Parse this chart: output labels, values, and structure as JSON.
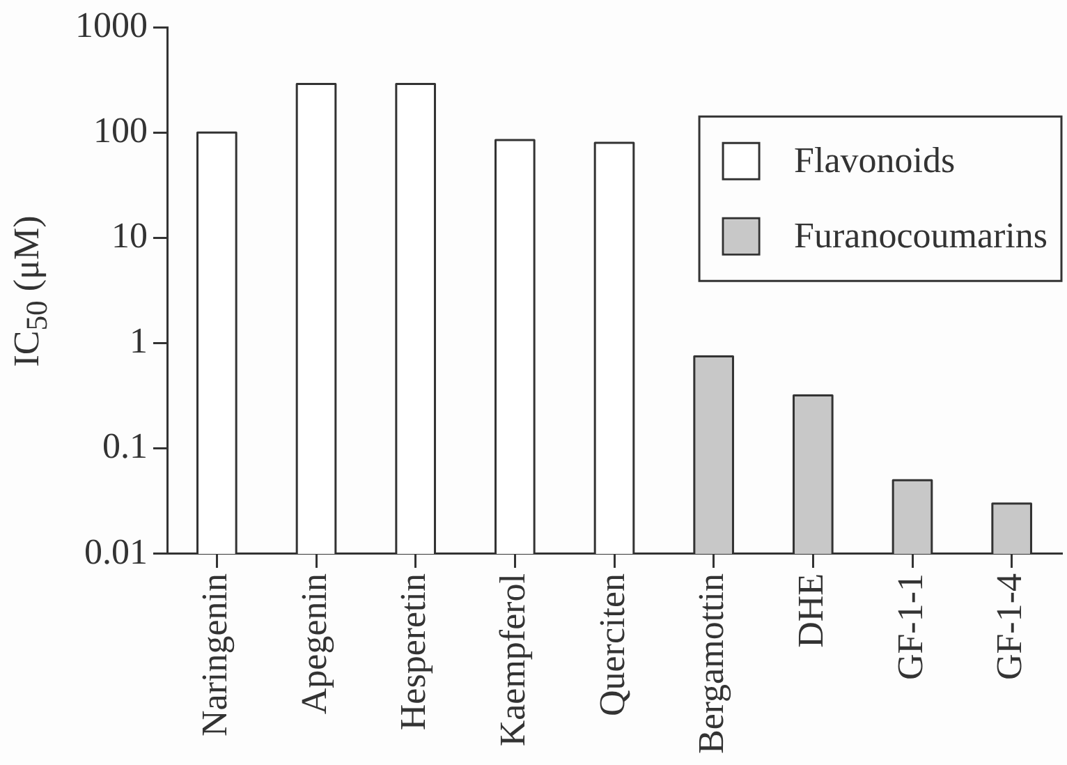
{
  "chart_data": {
    "type": "bar",
    "ylabel": "IC$_{50}$ (μM)",
    "categories": [
      "Naringenin",
      "Apegenin",
      "Hesperetin",
      "Kaempferol",
      "Querciten",
      "Bergamottin",
      "DHE",
      "GF-1-1",
      "GF-1-4"
    ],
    "series": [
      {
        "name": "Flavonoids",
        "color": "#ffffff",
        "values": [
          100,
          290,
          290,
          85,
          80,
          null,
          null,
          null,
          null
        ]
      },
      {
        "name": "Furanocoumarins",
        "color": "#c8c8c8",
        "values": [
          null,
          null,
          null,
          null,
          null,
          0.75,
          0.32,
          0.05,
          0.03
        ]
      }
    ],
    "log": true,
    "ylim": [
      0.01,
      1000
    ],
    "yticks": [
      0.01,
      0.1,
      1,
      10,
      100,
      1000
    ],
    "grid": false,
    "legend": "top right"
  }
}
